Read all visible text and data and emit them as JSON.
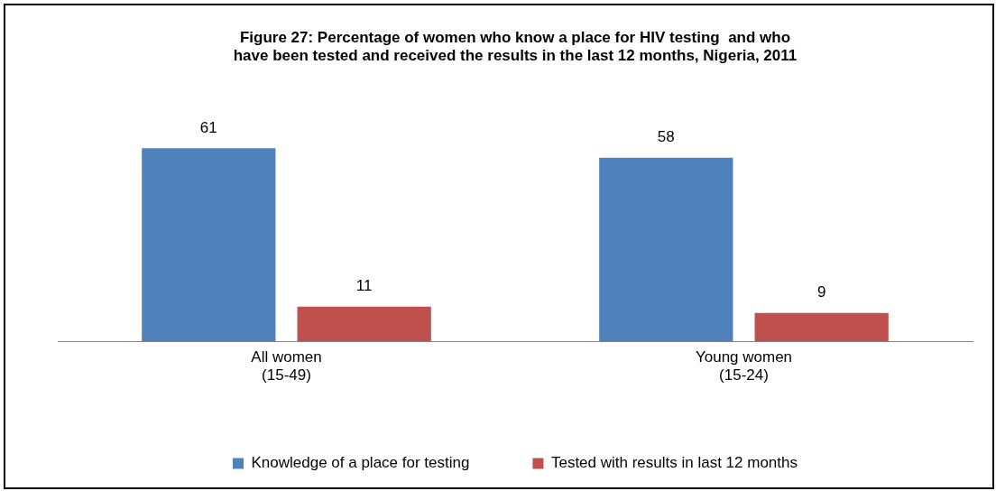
{
  "chart_data": {
    "type": "bar",
    "title": "Figure 27: Percentage of women who know a place for HIV testing  and who\nhave been tested and received the results in the last 12 months, Nigeria, 2011",
    "categories": [
      "All women\n(15-49)",
      "Young women\n(15-24)"
    ],
    "series": [
      {
        "name": "Knowledge of a place for testing",
        "color": "#4f81bd",
        "values": [
          61,
          58
        ]
      },
      {
        "name": "Tested with results in last 12 months",
        "color": "#c0504d",
        "values": [
          11,
          9
        ]
      }
    ],
    "data_labels": true,
    "grid": false,
    "legend": "bottom",
    "tick_labels": "x"
  }
}
